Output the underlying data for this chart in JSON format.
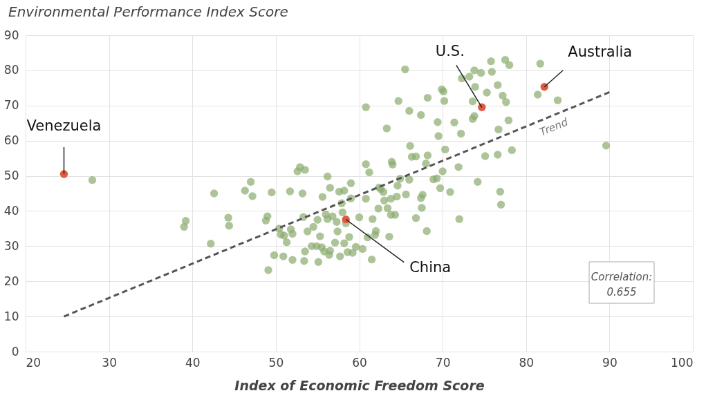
{
  "chart_data": {
    "type": "scatter",
    "title": "Environmental Performance Index Score",
    "xlabel": "Index of Economic Freedom Score",
    "xlim": [
      20,
      100
    ],
    "xticks": [
      20,
      30,
      40,
      50,
      60,
      70,
      80,
      90,
      100
    ],
    "ylim": [
      0,
      90
    ],
    "yticks": [
      0,
      10,
      20,
      30,
      40,
      50,
      60,
      70,
      80,
      90
    ],
    "grid": true,
    "legend": false,
    "marker": "circle",
    "series": [
      {
        "color": "#8aab6e",
        "x": [
          28.0,
          39,
          39.2,
          42.2,
          42.6,
          44.3,
          44.4,
          46.3,
          47,
          47.2,
          48.8,
          49,
          49.1,
          49.5,
          49.8,
          50.4,
          50.6,
          50.9,
          51,
          51.3,
          51.7,
          51.8,
          52,
          52,
          52.6,
          52.9,
          53.2,
          53.3,
          53.5,
          53.5,
          53.4,
          53.8,
          54.3,
          54.5,
          54.9,
          55,
          55.1,
          55.3,
          55.5,
          55.6,
          55.8,
          56,
          56.2,
          56.2,
          56.4,
          56.5,
          56.5,
          56.8,
          57.1,
          57.3,
          57.4,
          57.6,
          57.7,
          57.9,
          58.2,
          58,
          58.2,
          58.4,
          58.6,
          58.8,
          59,
          59,
          59.2,
          59.6,
          60,
          60.4,
          60.8,
          60.8,
          60.8,
          61,
          61.2,
          61.5,
          61.6,
          61.9,
          62,
          62.3,
          62.4,
          62.6,
          62.9,
          63,
          63.3,
          63.4,
          63.6,
          63.8,
          63.8,
          63.9,
          64,
          64.3,
          64.5,
          64.6,
          64.7,
          64.9,
          65.5,
          65.6,
          66,
          66.1,
          66,
          66.3,
          66.8,
          66.8,
          67.4,
          67.4,
          67.5,
          67.6,
          68,
          68.2,
          68.2,
          68.1,
          68.9,
          69.3,
          69.4,
          69.5,
          69.7,
          69.9,
          70,
          70.1,
          70.2,
          70.3,
          70.9,
          71.4,
          71.9,
          72,
          72.2,
          72.3,
          73.2,
          73.6,
          73.6,
          73.8,
          73.8,
          73.9,
          74.2,
          74.6,
          75.1,
          75.3,
          75.8,
          75.9,
          76.6,
          76.6,
          76.7,
          76.9,
          77,
          77.2,
          77.5,
          77.6,
          77.9,
          78,
          78.3,
          81.4,
          81.7,
          83.8,
          89.6
        ],
        "values": [
          48.8,
          35.5,
          37.2,
          30.7,
          45,
          38.1,
          35.8,
          45.8,
          48.3,
          44.2,
          37.3,
          38.5,
          23.2,
          45.3,
          27.4,
          35,
          33.3,
          27.1,
          33,
          31.1,
          45.6,
          34.8,
          33.5,
          26.1,
          51.3,
          52.5,
          45,
          38.3,
          28.5,
          51.7,
          25.8,
          34.2,
          30,
          35.5,
          30,
          37.5,
          25.5,
          32.8,
          29.7,
          44,
          28.5,
          39,
          49.8,
          37.7,
          27.5,
          28.7,
          46.6,
          38.5,
          31,
          36.9,
          34.2,
          45.5,
          27.1,
          42.2,
          45.8,
          39.6,
          30.8,
          36.5,
          28.3,
          32.6,
          47.9,
          43.6,
          28.1,
          29.8,
          38.2,
          29.2,
          43.5,
          69.5,
          53.3,
          32.5,
          51,
          26.2,
          37.7,
          33.2,
          34.3,
          40.7,
          46.7,
          46.2,
          45.4,
          43,
          63.5,
          40.8,
          32.7,
          43.5,
          38.9,
          54,
          53.2,
          38.9,
          44.1,
          47.2,
          71.3,
          49.2,
          80.3,
          44.7,
          48.9,
          58.5,
          68.5,
          55.4,
          38,
          55.5,
          67.3,
          43.7,
          40.9,
          44.6,
          53.5,
          55.8,
          72.2,
          34.3,
          49,
          49.3,
          65.3,
          61.3,
          46.5,
          74.6,
          51.3,
          74,
          71.3,
          57.5,
          45.4,
          65.2,
          52.5,
          37.7,
          62,
          77.7,
          78.2,
          71.2,
          66.2,
          67,
          80,
          75.3,
          48.3,
          79.3,
          55.6,
          73.7,
          82.6,
          79.6,
          56,
          75.8,
          63.2,
          45.5,
          41.8,
          72.8,
          83,
          71,
          65.8,
          81.5,
          57.3,
          73.1,
          81.9,
          71.5,
          58.6
        ]
      },
      {
        "color": "#e05a40",
        "x": [
          24.6,
          58.4,
          74.7,
          82.2
        ],
        "values": [
          50.5,
          37.6,
          69.5,
          75.3
        ]
      },
      {
        "name": "Trend",
        "type": "line",
        "line_style": "dashed",
        "marker": "none",
        "color": "#555555",
        "x": [
          24.6,
          90
        ],
        "values": [
          10,
          73.8
        ]
      }
    ],
    "annotations": [
      {
        "text": "Venezuela",
        "x": 24.6,
        "y": 50.5
      },
      {
        "text": "China",
        "x": 58.4,
        "y": 37.6
      },
      {
        "text": "U.S.",
        "x": 74.7,
        "y": 69.5
      },
      {
        "text": "Australia",
        "x": 82.2,
        "y": 75.3
      },
      "Correlation:\n0.655"
    ]
  }
}
